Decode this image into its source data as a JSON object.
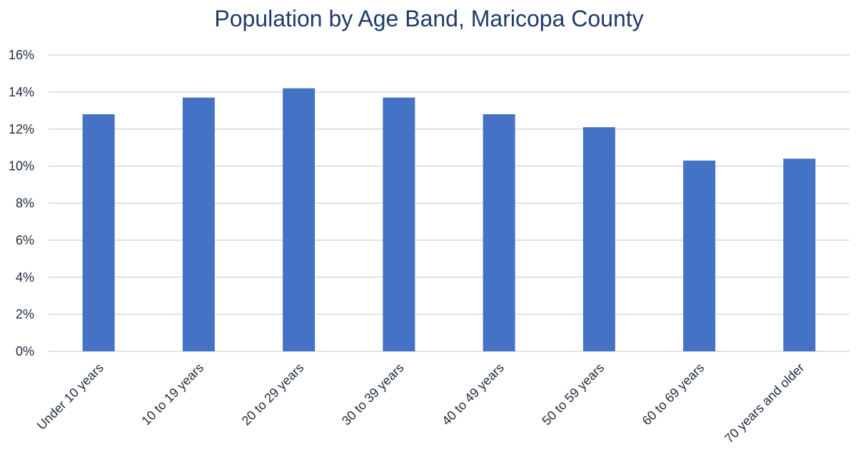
{
  "chart_data": {
    "type": "bar",
    "title": "Population by Age Band, Maricopa County",
    "xlabel": "",
    "ylabel": "",
    "categories": [
      "Under 10 years",
      "10 to 19 years",
      "20 to 29 years",
      "30 to 39 years",
      "40 to 49 years",
      "50 to 59 years",
      "60 to 69 years",
      "70 years and older"
    ],
    "values": [
      12.8,
      13.7,
      14.2,
      13.7,
      12.8,
      12.1,
      10.3,
      10.4
    ],
    "ylim": [
      0,
      16
    ],
    "yticks": [
      0,
      2,
      4,
      6,
      8,
      10,
      12,
      14,
      16
    ],
    "ytick_labels": [
      "0%",
      "2%",
      "4%",
      "6%",
      "8%",
      "10%",
      "12%",
      "14%",
      "16%"
    ],
    "grid": true,
    "legend": "none",
    "colors": {
      "bar": "#4472c4",
      "gridline": "#d9d9d9",
      "title": "#1f3a6b"
    }
  }
}
